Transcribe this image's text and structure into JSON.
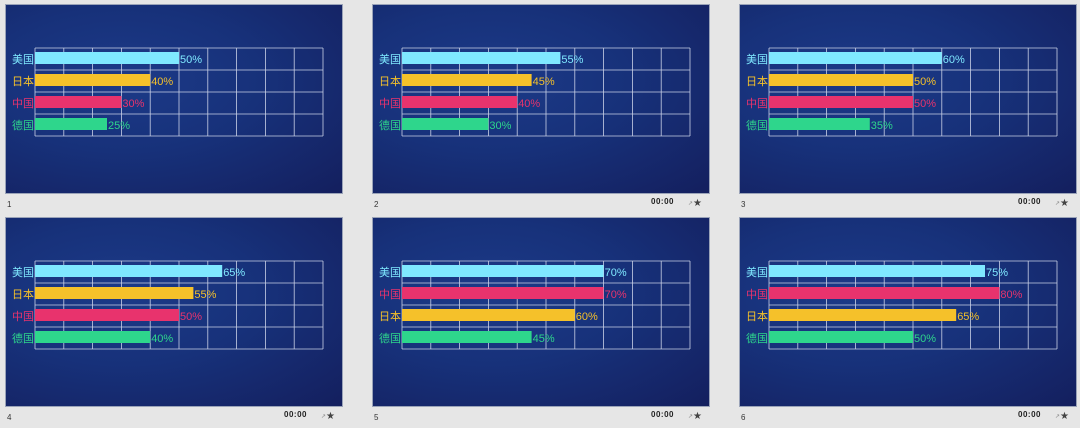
{
  "timer_text": "00:00",
  "slides": [
    {
      "number": "1",
      "show_timer": false,
      "chart_data": {
        "type": "bar",
        "orientation": "horizontal",
        "xlim": [
          0,
          100
        ],
        "grid": true,
        "series": [
          {
            "name": "美国",
            "value": 50,
            "label": "50%",
            "color": "#7fe8ff"
          },
          {
            "name": "日本",
            "value": 40,
            "label": "40%",
            "color": "#f5c12a"
          },
          {
            "name": "中国",
            "value": 30,
            "label": "30%",
            "color": "#e8336d"
          },
          {
            "name": "德国",
            "value": 25,
            "label": "25%",
            "color": "#2ed68c"
          }
        ]
      }
    },
    {
      "number": "2",
      "show_timer": true,
      "chart_data": {
        "type": "bar",
        "orientation": "horizontal",
        "xlim": [
          0,
          100
        ],
        "grid": true,
        "series": [
          {
            "name": "美国",
            "value": 55,
            "label": "55%",
            "color": "#7fe8ff"
          },
          {
            "name": "日本",
            "value": 45,
            "label": "45%",
            "color": "#f5c12a"
          },
          {
            "name": "中国",
            "value": 40,
            "label": "40%",
            "color": "#e8336d"
          },
          {
            "name": "德国",
            "value": 30,
            "label": "30%",
            "color": "#2ed68c"
          }
        ]
      }
    },
    {
      "number": "3",
      "show_timer": true,
      "chart_data": {
        "type": "bar",
        "orientation": "horizontal",
        "xlim": [
          0,
          100
        ],
        "grid": true,
        "series": [
          {
            "name": "美国",
            "value": 60,
            "label": "60%",
            "color": "#7fe8ff"
          },
          {
            "name": "日本",
            "value": 50,
            "label": "50%",
            "color": "#f5c12a"
          },
          {
            "name": "中国",
            "value": 50,
            "label": "50%",
            "color": "#e8336d"
          },
          {
            "name": "德国",
            "value": 35,
            "label": "35%",
            "color": "#2ed68c"
          }
        ]
      }
    },
    {
      "number": "4",
      "show_timer": true,
      "chart_data": {
        "type": "bar",
        "orientation": "horizontal",
        "xlim": [
          0,
          100
        ],
        "grid": true,
        "series": [
          {
            "name": "美国",
            "value": 65,
            "label": "65%",
            "color": "#7fe8ff"
          },
          {
            "name": "日本",
            "value": 55,
            "label": "55%",
            "color": "#f5c12a"
          },
          {
            "name": "中国",
            "value": 50,
            "label": "50%",
            "color": "#e8336d"
          },
          {
            "name": "德国",
            "value": 40,
            "label": "40%",
            "color": "#2ed68c"
          }
        ]
      }
    },
    {
      "number": "5",
      "show_timer": true,
      "chart_data": {
        "type": "bar",
        "orientation": "horizontal",
        "xlim": [
          0,
          100
        ],
        "grid": true,
        "series": [
          {
            "name": "美国",
            "value": 70,
            "label": "70%",
            "color": "#7fe8ff"
          },
          {
            "name": "中国",
            "value": 70,
            "label": "70%",
            "color": "#e8336d"
          },
          {
            "name": "日本",
            "value": 60,
            "label": "60%",
            "color": "#f5c12a"
          },
          {
            "name": "德国",
            "value": 45,
            "label": "45%",
            "color": "#2ed68c"
          }
        ]
      }
    },
    {
      "number": "6",
      "show_timer": true,
      "chart_data": {
        "type": "bar",
        "orientation": "horizontal",
        "xlim": [
          0,
          100
        ],
        "grid": true,
        "series": [
          {
            "name": "美国",
            "value": 75,
            "label": "75%",
            "color": "#7fe8ff"
          },
          {
            "name": "中国",
            "value": 80,
            "label": "80%",
            "color": "#e8336d"
          },
          {
            "name": "日本",
            "value": 65,
            "label": "65%",
            "color": "#f5c12a"
          },
          {
            "name": "德国",
            "value": 50,
            "label": "50%",
            "color": "#2ed68c"
          }
        ]
      }
    }
  ]
}
